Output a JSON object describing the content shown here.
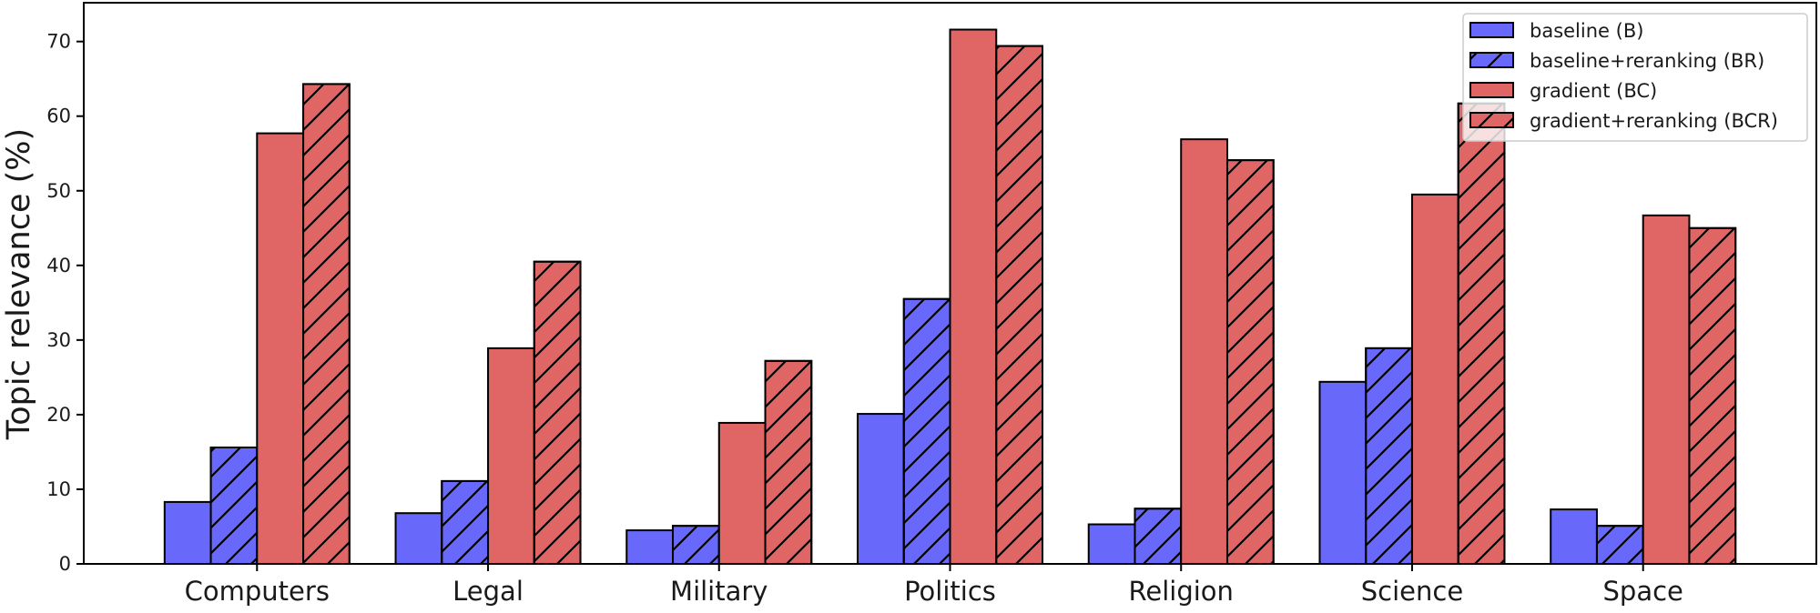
{
  "chart_data": {
    "type": "bar",
    "title": "",
    "xlabel": "",
    "ylabel": "Topic relevance (%)",
    "ylim": [
      0,
      75.2
    ],
    "yticks": [
      0,
      10,
      20,
      30,
      40,
      50,
      60,
      70
    ],
    "grid": false,
    "legend_position": "top-right",
    "categories": [
      "Computers",
      "Legal",
      "Military",
      "Politics",
      "Religion",
      "Science",
      "Space"
    ],
    "series": [
      {
        "name": "baseline (B)",
        "color": "#6868fa",
        "hatch": false,
        "values": [
          8.3,
          6.8,
          4.5,
          20.1,
          5.3,
          24.4,
          7.3
        ]
      },
      {
        "name": "baseline+reranking (BR)",
        "color": "#6868fa",
        "hatch": true,
        "values": [
          15.6,
          11.1,
          5.1,
          35.5,
          7.4,
          28.9,
          5.1
        ]
      },
      {
        "name": "gradient (BC)",
        "color": "#e06666",
        "hatch": false,
        "values": [
          57.7,
          28.9,
          18.9,
          71.6,
          56.9,
          49.5,
          46.7
        ]
      },
      {
        "name": "gradient+reranking (BCR)",
        "color": "#e06666",
        "hatch": true,
        "values": [
          64.3,
          40.5,
          27.2,
          69.4,
          54.1,
          61.7,
          45.0
        ]
      }
    ]
  }
}
